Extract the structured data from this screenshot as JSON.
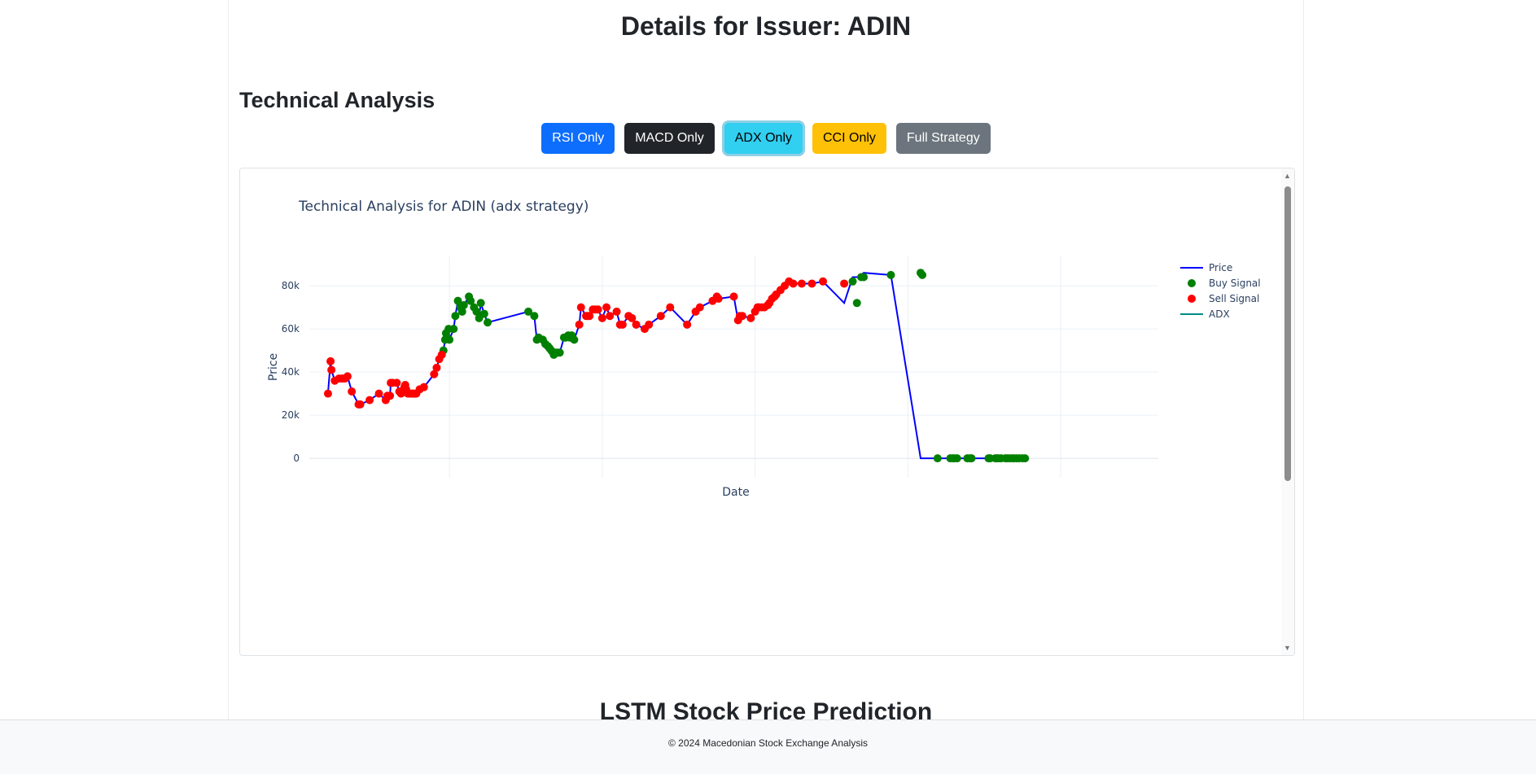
{
  "page": {
    "title": "Details for Issuer: ADIN"
  },
  "technical": {
    "heading": "Technical Analysis",
    "buttons": {
      "rsi": "RSI Only",
      "macd": "MACD Only",
      "adx": "ADX Only",
      "cci": "CCI Only",
      "full": "Full Strategy"
    }
  },
  "lstm": {
    "heading": "LSTM Stock Price Prediction"
  },
  "footer": {
    "text": "© 2024 Macedonian Stock Exchange Analysis"
  },
  "colors": {
    "price_line": "#0000ff",
    "buy": "#008000",
    "sell": "#ff0000",
    "adx": "#008b8b",
    "btn_rsi": "#0d6efd",
    "btn_macd": "#212529",
    "btn_adx": "#31cff0",
    "btn_cci": "#ffc107",
    "btn_full": "#6c757d"
  },
  "chart_data": {
    "type": "line",
    "title": "Technical Analysis for ADIN (adx strategy)",
    "xlabel": "Date",
    "ylabel": "Price",
    "ylim": [
      -9000,
      94000
    ],
    "xlim": [
      0,
      1000
    ],
    "y_ticks": [
      0,
      20000,
      40000,
      60000,
      80000
    ],
    "y_tick_labels": [
      "0",
      "20k",
      "40k",
      "60k",
      "80k"
    ],
    "x_tick_labels": [],
    "x_grid": [
      165,
      345,
      525,
      705,
      885
    ],
    "grid": true,
    "legend_position": "top-right",
    "legend": [
      "Price",
      "Buy Signal",
      "Sell Signal",
      "ADX"
    ],
    "series": [
      {
        "name": "Price",
        "x": [
          22,
          25,
          26,
          30,
          35,
          38,
          40,
          42,
          45,
          50,
          58,
          60,
          71,
          82,
          90,
          92,
          95,
          96,
          98,
          103,
          106,
          108,
          112,
          113,
          114,
          116,
          118,
          120,
          122,
          124,
          126,
          130,
          135,
          147,
          150,
          153,
          156,
          158,
          160,
          161,
          162,
          164,
          165,
          170,
          172,
          175,
          178,
          180,
          182,
          188,
          190,
          194,
          197,
          200,
          202,
          206,
          210,
          258,
          265,
          268,
          270,
          275,
          278,
          281,
          283,
          285,
          287,
          288,
          290,
          292,
          295,
          300,
          302,
          305,
          307,
          309,
          312,
          318,
          320,
          326,
          328,
          330,
          334,
          337,
          340,
          345,
          350,
          354,
          362,
          366,
          369,
          376,
          380,
          385,
          395,
          400,
          414,
          425,
          445,
          455,
          460,
          475,
          480,
          482,
          500,
          505,
          507,
          510,
          520,
          525,
          528,
          530,
          533,
          536,
          540,
          542,
          545,
          548,
          550,
          555,
          560,
          565,
          570,
          580,
          592,
          605,
          630,
          640,
          645,
          650,
          653,
          685,
          720,
          722,
          740,
          755,
          758,
          760,
          763,
          775,
          778,
          780,
          800,
          802,
          808,
          810,
          812,
          815,
          820,
          822,
          825,
          828,
          830,
          833,
          836,
          840,
          843
        ],
        "y": [
          30000,
          45000,
          41000,
          36000,
          37000,
          37000,
          37000,
          37000,
          38000,
          31000,
          25000,
          25000,
          27000,
          30000,
          27000,
          29000,
          29000,
          35000,
          35000,
          35000,
          31000,
          30000,
          33000,
          34000,
          32000,
          30000,
          30000,
          30000,
          30000,
          30000,
          30000,
          32000,
          33000,
          39000,
          42000,
          46000,
          48000,
          50000,
          55000,
          58000,
          56000,
          60000,
          55000,
          60000,
          66000,
          73000,
          70000,
          68000,
          71000,
          75000,
          73000,
          70000,
          68000,
          65000,
          72000,
          67000,
          63000,
          68000,
          66000,
          55000,
          56000,
          55000,
          53000,
          52000,
          51000,
          50000,
          49000,
          48000,
          49000,
          49000,
          49000,
          56000,
          56000,
          57000,
          56000,
          57000,
          55000,
          62000,
          70000,
          66000,
          66000,
          66000,
          69000,
          69000,
          69000,
          65000,
          70000,
          66000,
          68000,
          62000,
          62000,
          66000,
          65000,
          62000,
          60000,
          62000,
          66000,
          70000,
          62000,
          68000,
          70000,
          73000,
          75000,
          74000,
          75000,
          64000,
          66000,
          66000,
          65000,
          68000,
          70000,
          70000,
          70000,
          70000,
          71000,
          72000,
          74000,
          75000,
          76000,
          78000,
          80000,
          82000,
          81000,
          81000,
          81000,
          82000,
          72000,
          84000,
          84000,
          85000,
          86000,
          85000,
          0,
          0,
          0,
          0,
          0,
          0,
          0,
          0,
          0,
          0,
          0,
          0,
          0,
          0,
          0,
          0,
          0,
          0,
          0,
          0,
          0,
          0,
          0,
          0,
          0
        ]
      },
      {
        "name": "Buy Signal",
        "x": [
          158,
          160,
          161,
          162,
          164,
          165,
          170,
          172,
          175,
          178,
          180,
          182,
          188,
          190,
          194,
          197,
          200,
          202,
          206,
          210,
          258,
          265,
          268,
          270,
          275,
          278,
          281,
          283,
          285,
          287,
          288,
          290,
          292,
          295,
          300,
          302,
          305,
          307,
          309,
          312,
          640,
          645,
          650,
          653,
          685,
          720,
          722,
          740,
          755,
          758,
          760,
          763,
          775,
          778,
          780,
          800,
          802,
          808,
          810,
          812,
          815,
          820,
          822,
          825,
          828,
          830,
          833,
          836,
          840,
          843
        ],
        "y": [
          50000,
          55000,
          58000,
          56000,
          60000,
          55000,
          60000,
          66000,
          73000,
          70000,
          68000,
          71000,
          75000,
          73000,
          70000,
          68000,
          65000,
          72000,
          67000,
          63000,
          68000,
          66000,
          55000,
          56000,
          55000,
          53000,
          52000,
          51000,
          50000,
          49000,
          48000,
          49000,
          49000,
          49000,
          56000,
          56000,
          57000,
          56000,
          57000,
          55000,
          82000,
          72000,
          84000,
          84000,
          85000,
          86000,
          85000,
          0,
          0,
          0,
          0,
          0,
          0,
          0,
          0,
          0,
          0,
          0,
          0,
          0,
          0,
          0,
          0,
          0,
          0,
          0,
          0,
          0,
          0,
          0
        ]
      },
      {
        "name": "Sell Signal",
        "x": [
          22,
          25,
          26,
          30,
          35,
          38,
          40,
          42,
          45,
          50,
          58,
          60,
          71,
          82,
          90,
          92,
          95,
          96,
          98,
          103,
          106,
          108,
          112,
          113,
          114,
          116,
          118,
          120,
          122,
          124,
          126,
          130,
          135,
          147,
          150,
          153,
          156,
          318,
          320,
          326,
          328,
          330,
          334,
          337,
          340,
          345,
          350,
          354,
          362,
          366,
          369,
          376,
          380,
          385,
          395,
          400,
          414,
          425,
          445,
          455,
          460,
          475,
          480,
          482,
          500,
          505,
          507,
          510,
          520,
          525,
          528,
          530,
          533,
          536,
          540,
          542,
          545,
          548,
          550,
          555,
          560,
          565,
          570,
          580,
          592,
          605,
          630
        ],
        "y": [
          30000,
          45000,
          41000,
          36000,
          37000,
          37000,
          37000,
          37000,
          38000,
          31000,
          25000,
          25000,
          27000,
          30000,
          27000,
          29000,
          29000,
          35000,
          35000,
          35000,
          31000,
          30000,
          33000,
          34000,
          32000,
          30000,
          30000,
          30000,
          30000,
          30000,
          30000,
          32000,
          33000,
          39000,
          42000,
          46000,
          48000,
          62000,
          70000,
          66000,
          66000,
          66000,
          69000,
          69000,
          69000,
          65000,
          70000,
          66000,
          68000,
          62000,
          62000,
          66000,
          65000,
          62000,
          60000,
          62000,
          66000,
          70000,
          62000,
          68000,
          70000,
          73000,
          75000,
          74000,
          75000,
          64000,
          66000,
          66000,
          65000,
          68000,
          70000,
          70000,
          70000,
          70000,
          71000,
          72000,
          74000,
          75000,
          76000,
          78000,
          80000,
          82000,
          81000,
          81000,
          81000,
          82000,
          81000
        ]
      },
      {
        "name": "ADX",
        "x": [],
        "y": []
      }
    ]
  }
}
